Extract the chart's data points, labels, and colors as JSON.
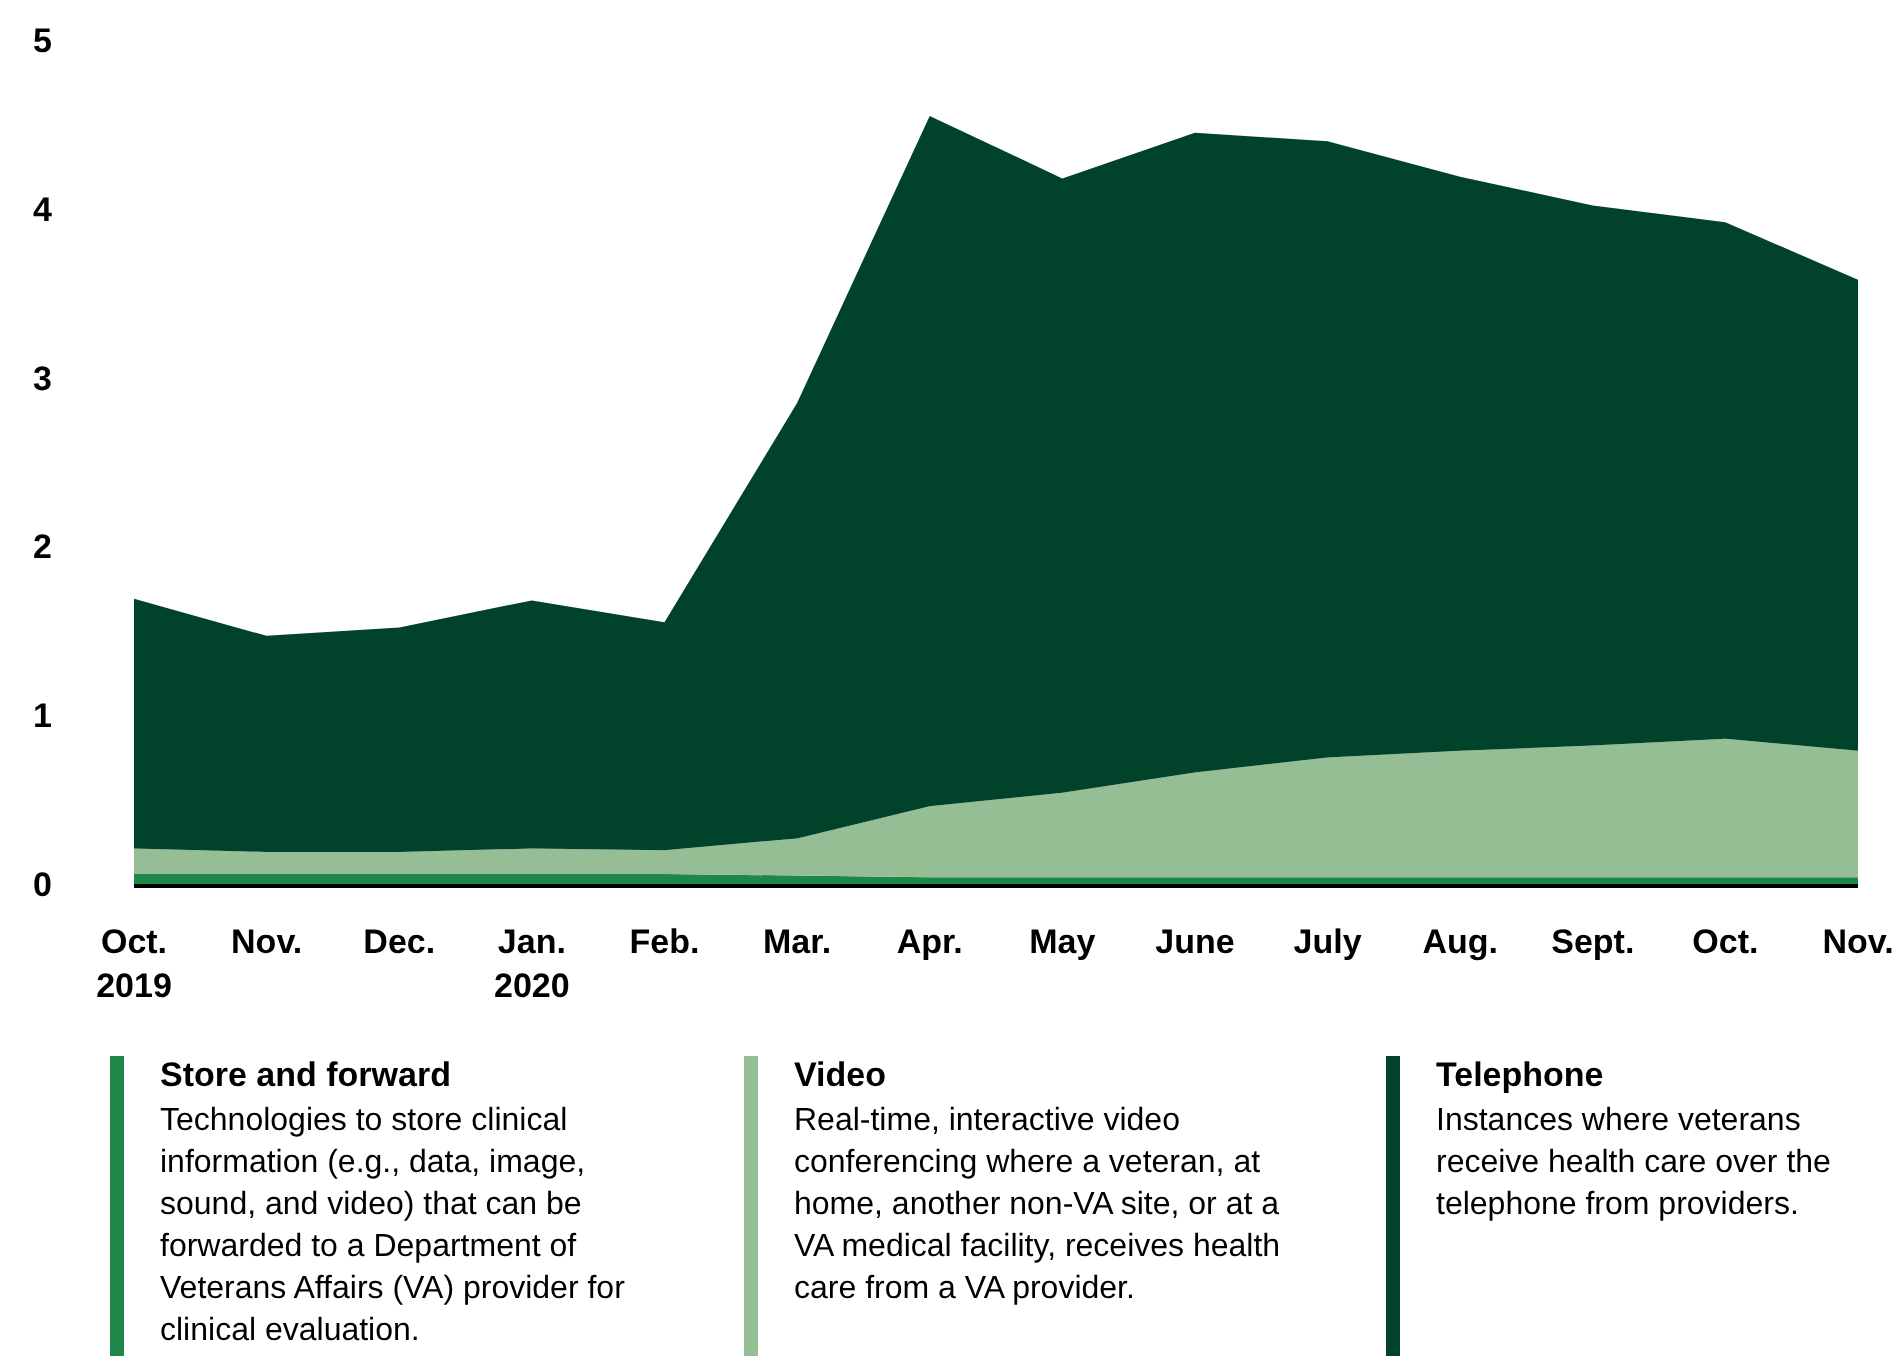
{
  "chart_data": {
    "type": "area",
    "stacked": true,
    "categories": [
      "Oct.\n2019",
      "Nov.",
      "Dec.",
      "Jan.\n2020",
      "Feb.",
      "Mar.",
      "Apr.",
      "May",
      "June",
      "July",
      "Aug.",
      "Sept.",
      "Oct.",
      "Nov."
    ],
    "series": [
      {
        "name": "Store and forward",
        "color": "#20874a",
        "values": [
          0.06,
          0.06,
          0.06,
          0.06,
          0.06,
          0.05,
          0.04,
          0.04,
          0.04,
          0.04,
          0.04,
          0.04,
          0.04,
          0.04
        ]
      },
      {
        "name": "Video",
        "color": "#95be94",
        "values": [
          0.15,
          0.13,
          0.13,
          0.15,
          0.14,
          0.22,
          0.42,
          0.5,
          0.62,
          0.71,
          0.75,
          0.78,
          0.82,
          0.75
        ]
      },
      {
        "name": "Telephone",
        "color": "#01432a",
        "values": [
          1.48,
          1.28,
          1.33,
          1.47,
          1.35,
          2.58,
          4.09,
          3.64,
          3.79,
          3.65,
          3.4,
          3.2,
          3.06,
          2.79
        ]
      }
    ],
    "ylim": [
      0,
      5
    ],
    "yticks": [
      0,
      1,
      2,
      3,
      4,
      5
    ],
    "grid": false,
    "legend": "bottom",
    "annotations": [
      "Technologies to store clinical information (e.g., data, image, sound, and video) that can be forwarded to a Department of Veterans Affairs (VA) provider for clinical evaluation.",
      "Real-time, interactive video conferencing where a veteran, at home, another non-VA site, or at a VA medical facility, receives health care from a VA provider.",
      "Instances where veterans receive health care over the telephone from providers."
    ]
  }
}
